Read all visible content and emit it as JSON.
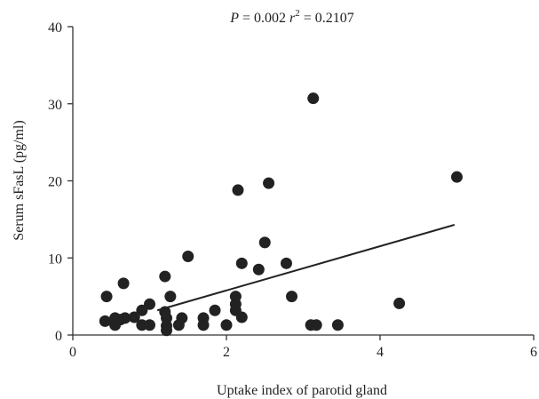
{
  "chart_data": {
    "type": "scatter",
    "annotation": {
      "p_label": "P",
      "p_text": " = 0.002 ",
      "r_label": "r",
      "r_sup": "2",
      "r_text": " = 0.2107"
    },
    "xlabel": "Uptake index of parotid gland",
    "ylabel": "Serum sFasL (pg/ml)",
    "xlim": [
      0,
      6
    ],
    "ylim": [
      0,
      40
    ],
    "x_ticks": [
      0,
      2,
      4,
      6
    ],
    "y_ticks": [
      0,
      10,
      20,
      30,
      40
    ],
    "x_tick_labels": [
      "0",
      "2",
      "4",
      "6"
    ],
    "y_tick_labels": [
      "0",
      "10",
      "20",
      "30",
      "40"
    ],
    "grid": false,
    "series": [
      {
        "color": "#222222",
        "points": [
          {
            "x": 0.42,
            "y": 1.8
          },
          {
            "x": 0.44,
            "y": 5.0
          },
          {
            "x": 0.55,
            "y": 1.3
          },
          {
            "x": 0.55,
            "y": 2.2
          },
          {
            "x": 0.62,
            "y": 2.0
          },
          {
            "x": 0.66,
            "y": 6.7
          },
          {
            "x": 0.68,
            "y": 2.2
          },
          {
            "x": 0.8,
            "y": 2.3
          },
          {
            "x": 0.9,
            "y": 3.2
          },
          {
            "x": 0.9,
            "y": 1.3
          },
          {
            "x": 1.0,
            "y": 4.0
          },
          {
            "x": 1.0,
            "y": 1.3
          },
          {
            "x": 1.2,
            "y": 7.6
          },
          {
            "x": 1.2,
            "y": 3.0
          },
          {
            "x": 1.22,
            "y": 2.2
          },
          {
            "x": 1.22,
            "y": 1.2
          },
          {
            "x": 1.22,
            "y": 0.6
          },
          {
            "x": 1.27,
            "y": 5.0
          },
          {
            "x": 1.38,
            "y": 1.3
          },
          {
            "x": 1.42,
            "y": 2.2
          },
          {
            "x": 1.5,
            "y": 10.2
          },
          {
            "x": 1.7,
            "y": 2.2
          },
          {
            "x": 1.7,
            "y": 1.3
          },
          {
            "x": 1.85,
            "y": 3.2
          },
          {
            "x": 2.0,
            "y": 1.3
          },
          {
            "x": 2.12,
            "y": 5.0
          },
          {
            "x": 2.12,
            "y": 4.0
          },
          {
            "x": 2.12,
            "y": 3.2
          },
          {
            "x": 2.15,
            "y": 18.8
          },
          {
            "x": 2.2,
            "y": 9.3
          },
          {
            "x": 2.2,
            "y": 2.3
          },
          {
            "x": 2.42,
            "y": 8.5
          },
          {
            "x": 2.5,
            "y": 12.0
          },
          {
            "x": 2.55,
            "y": 19.7
          },
          {
            "x": 2.78,
            "y": 9.3
          },
          {
            "x": 2.85,
            "y": 5.0
          },
          {
            "x": 3.1,
            "y": 1.3
          },
          {
            "x": 3.13,
            "y": 30.7
          },
          {
            "x": 3.17,
            "y": 1.3
          },
          {
            "x": 3.45,
            "y": 1.3
          },
          {
            "x": 4.25,
            "y": 4.1
          },
          {
            "x": 5.0,
            "y": 20.5
          }
        ]
      }
    ],
    "trend_line": {
      "x": [
        1.1,
        4.97
      ],
      "y": [
        3.2,
        14.3
      ],
      "color": "#222222"
    }
  }
}
